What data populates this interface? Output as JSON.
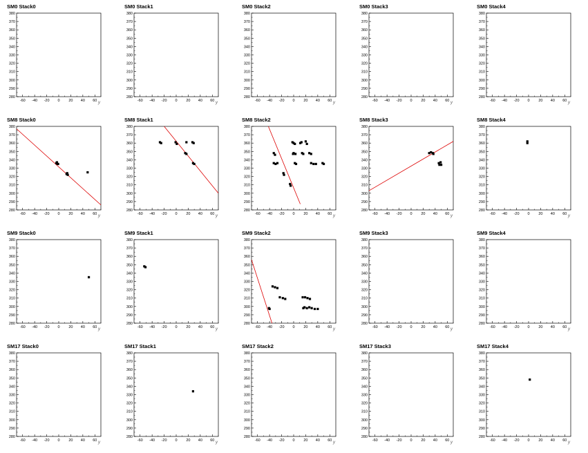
{
  "chart_data": {
    "type": "scatter",
    "layout": {
      "rows": 4,
      "cols": 5
    },
    "xlabel": "y",
    "ylabel": "",
    "xlim": [
      -70,
      70
    ],
    "ylim": [
      280,
      380
    ],
    "xticks": [
      -60,
      -40,
      -20,
      0,
      20,
      40,
      60
    ],
    "yticks": [
      280,
      290,
      300,
      310,
      320,
      330,
      340,
      350,
      360,
      370,
      380
    ],
    "grid": false,
    "colors": {
      "points": "#000000",
      "fit_line": "#dd0000",
      "axes": "#000000"
    },
    "panels": [
      {
        "title": "SM0 Stack0",
        "points": [],
        "fit": null
      },
      {
        "title": "SM0 Stack1",
        "points": [],
        "fit": null
      },
      {
        "title": "SM0 Stack2",
        "points": [],
        "fit": null
      },
      {
        "title": "SM0 Stack3",
        "points": [],
        "fit": null
      },
      {
        "title": "SM0 Stack4",
        "points": [],
        "fit": null
      },
      {
        "title": "SM8 Stack0",
        "points": [
          [
            -4,
            336
          ],
          [
            -2,
            335
          ],
          [
            -3,
            337
          ],
          [
            -1,
            335
          ],
          [
            13,
            323
          ],
          [
            15,
            322
          ],
          [
            14,
            324
          ],
          [
            48,
            325
          ]
        ],
        "fit": [
          [
            -70,
            377
          ],
          [
            70,
            286
          ]
        ]
      },
      {
        "title": "SM8 Stack1",
        "points": [
          [
            -27,
            361
          ],
          [
            -25,
            360
          ],
          [
            -1,
            361
          ],
          [
            1,
            359
          ],
          [
            17,
            361
          ],
          [
            27,
            361
          ],
          [
            29,
            360
          ],
          [
            15,
            348
          ],
          [
            17,
            347
          ],
          [
            28,
            336
          ],
          [
            30,
            335
          ]
        ],
        "fit": [
          [
            -20,
            380
          ],
          [
            70,
            300
          ]
        ]
      },
      {
        "title": "SM8 Stack2",
        "points": [
          [
            -33,
            348
          ],
          [
            -31,
            346
          ],
          [
            -33,
            336
          ],
          [
            -30,
            335
          ],
          [
            -27,
            336
          ],
          [
            -17,
            324
          ],
          [
            -16,
            322
          ],
          [
            -6,
            311
          ],
          [
            -5,
            309
          ],
          [
            -2,
            361
          ],
          [
            0,
            360
          ],
          [
            2,
            359
          ],
          [
            -1,
            347
          ],
          [
            0,
            348
          ],
          [
            3,
            347
          ],
          [
            2,
            336
          ],
          [
            4,
            335
          ],
          [
            11,
            360
          ],
          [
            13,
            361
          ],
          [
            20,
            362
          ],
          [
            22,
            359
          ],
          [
            14,
            348
          ],
          [
            16,
            347
          ],
          [
            26,
            348
          ],
          [
            29,
            347
          ],
          [
            29,
            336
          ],
          [
            33,
            335
          ],
          [
            37,
            335
          ],
          [
            48,
            336
          ],
          [
            50,
            335
          ]
        ],
        "fit": [
          [
            -42,
            380
          ],
          [
            11,
            287
          ]
        ]
      },
      {
        "title": "SM8 Stack3",
        "points": [
          [
            30,
            348
          ],
          [
            33,
            349
          ],
          [
            36,
            348
          ],
          [
            37,
            347
          ],
          [
            46,
            336
          ],
          [
            47,
            334
          ],
          [
            49,
            337
          ],
          [
            50,
            334
          ]
        ],
        "fit": [
          [
            -70,
            303
          ],
          [
            70,
            362
          ]
        ]
      },
      {
        "title": "SM8 Stack4",
        "points": [
          [
            -2,
            362
          ],
          [
            -2,
            360
          ]
        ],
        "fit": null
      },
      {
        "title": "SM9 Stack0",
        "points": [
          [
            50,
            335
          ]
        ],
        "fit": null
      },
      {
        "title": "SM9 Stack1",
        "points": [
          [
            -53,
            348
          ],
          [
            -51,
            347
          ]
        ],
        "fit": null
      },
      {
        "title": "SM9 Stack2",
        "points": [
          [
            -41,
            298
          ],
          [
            -40,
            297
          ],
          [
            -35,
            324
          ],
          [
            -31,
            323
          ],
          [
            -27,
            322
          ],
          [
            -23,
            311
          ],
          [
            -18,
            310
          ],
          [
            -14,
            309
          ],
          [
            15,
            311
          ],
          [
            19,
            311
          ],
          [
            23,
            310
          ],
          [
            27,
            309
          ],
          [
            16,
            298
          ],
          [
            18,
            299
          ],
          [
            22,
            298
          ],
          [
            26,
            299
          ],
          [
            30,
            298
          ],
          [
            35,
            297
          ],
          [
            40,
            297
          ]
        ],
        "fit": [
          [
            -70,
            356
          ],
          [
            -36,
            280
          ]
        ]
      },
      {
        "title": "SM9 Stack3",
        "points": [],
        "fit": null
      },
      {
        "title": "SM9 Stack4",
        "points": [],
        "fit": null
      },
      {
        "title": "SM17 Stack0",
        "points": [],
        "fit": null
      },
      {
        "title": "SM17 Stack1",
        "points": [
          [
            28,
            334
          ]
        ],
        "fit": null
      },
      {
        "title": "SM17 Stack2",
        "points": [],
        "fit": null
      },
      {
        "title": "SM17 Stack3",
        "points": [],
        "fit": null
      },
      {
        "title": "SM17 Stack4",
        "points": [
          [
            2,
            348
          ]
        ],
        "fit": null
      }
    ]
  }
}
